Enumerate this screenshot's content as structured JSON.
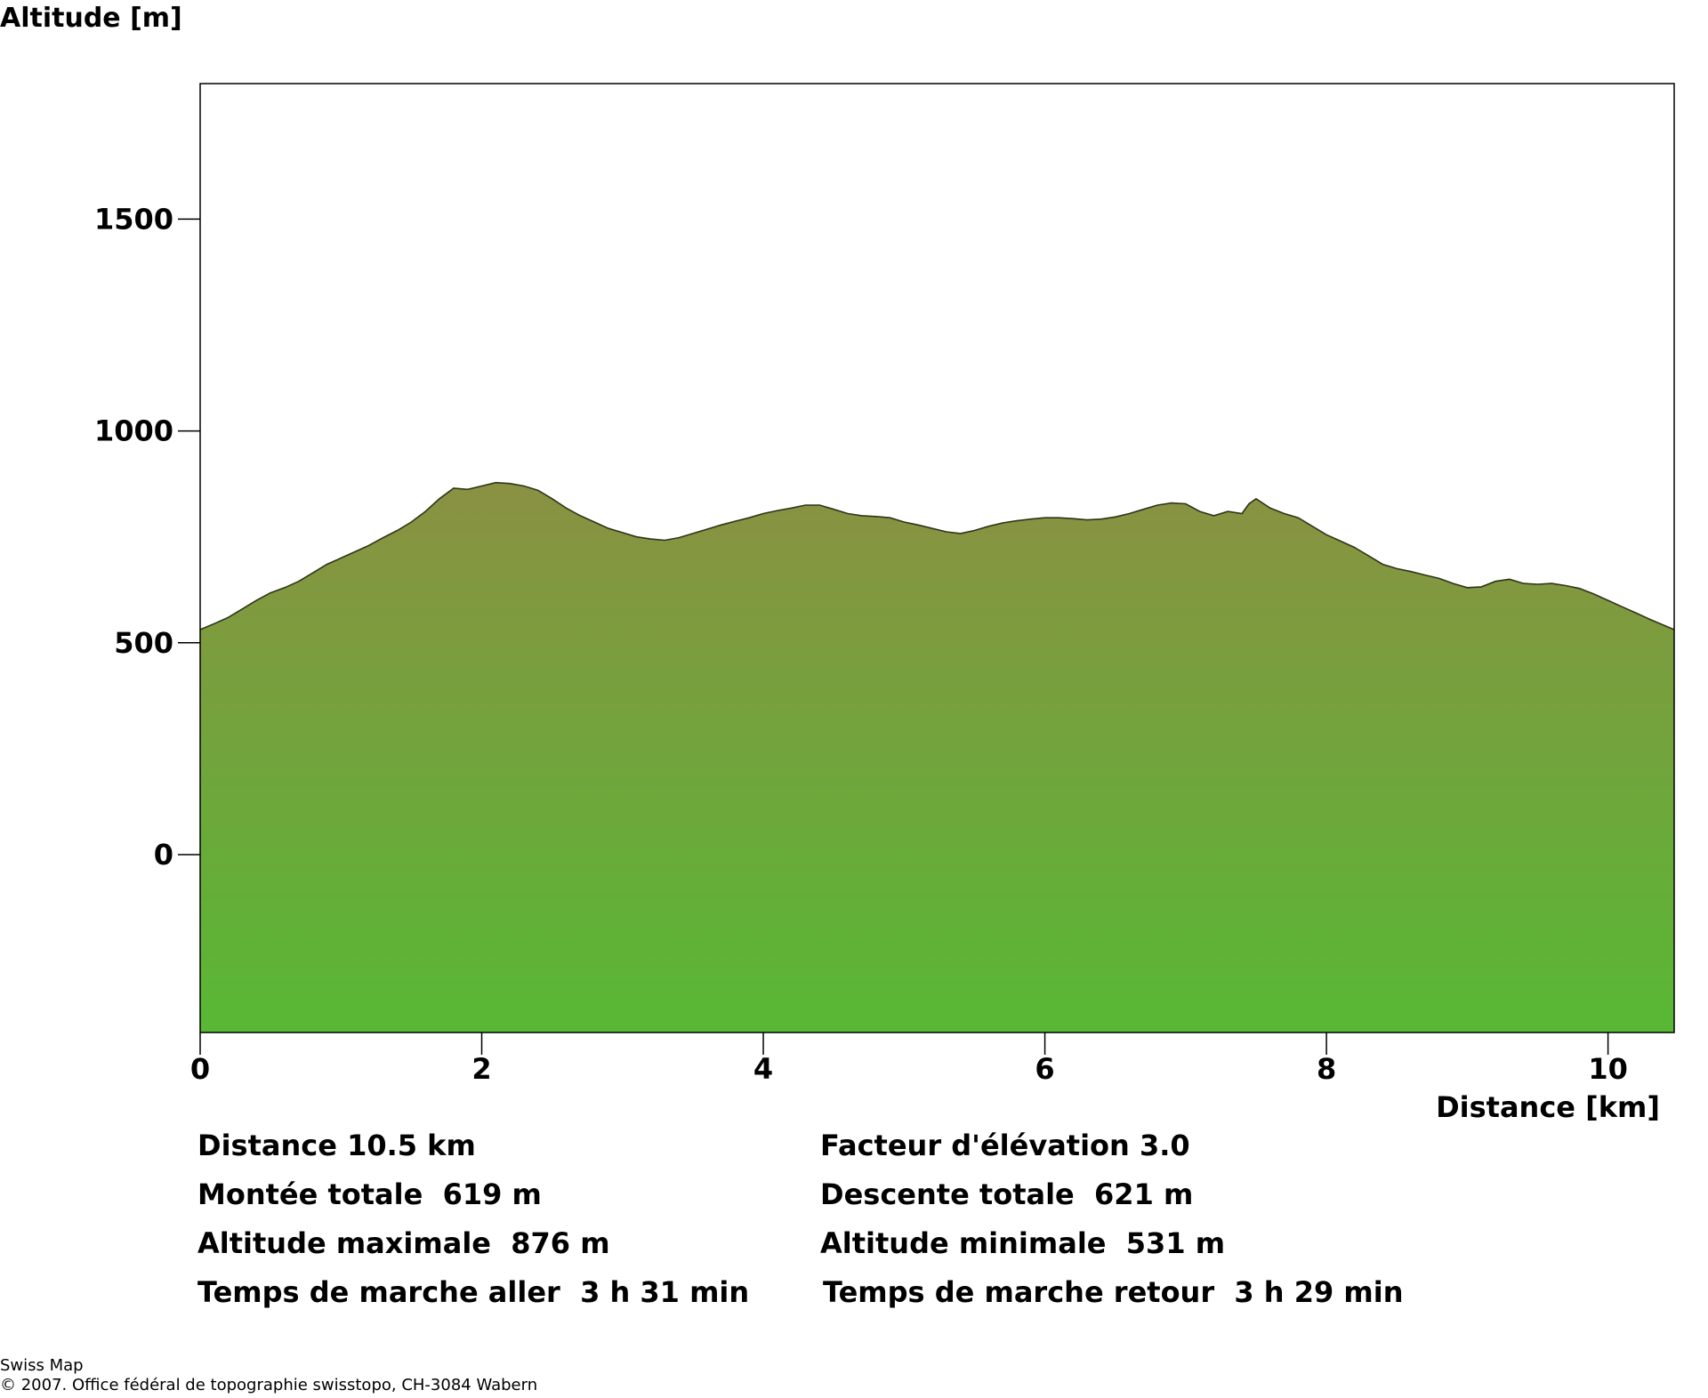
{
  "chart_data": {
    "type": "area",
    "title": "",
    "ylabel": "Altitude [m]",
    "xlabel": "Distance [km]",
    "xlim": [
      0,
      10.47
    ],
    "ylim": [
      -420,
      1820
    ],
    "x_ticks": [
      0,
      2,
      4,
      6,
      8,
      10
    ],
    "y_ticks": [
      0,
      500,
      1000,
      1500
    ],
    "grid": false,
    "fill_gradient": {
      "top": "#8a9142",
      "bottom": "#58b835"
    },
    "outline_color": "#2f3319",
    "series": [
      {
        "x": [
          0.0,
          0.1,
          0.2,
          0.3,
          0.4,
          0.5,
          0.6,
          0.7,
          0.8,
          0.9,
          1.0,
          1.1,
          1.2,
          1.3,
          1.4,
          1.5,
          1.6,
          1.7,
          1.8,
          1.9,
          2.0,
          2.1,
          2.2,
          2.3,
          2.4,
          2.5,
          2.6,
          2.7,
          2.8,
          2.9,
          3.0,
          3.1,
          3.2,
          3.3,
          3.4,
          3.5,
          3.6,
          3.7,
          3.8,
          3.9,
          4.0,
          4.1,
          4.2,
          4.3,
          4.4,
          4.5,
          4.6,
          4.7,
          4.8,
          4.9,
          5.0,
          5.1,
          5.2,
          5.3,
          5.4,
          5.5,
          5.6,
          5.7,
          5.8,
          5.9,
          6.0,
          6.1,
          6.2,
          6.3,
          6.4,
          6.5,
          6.6,
          6.7,
          6.8,
          6.9,
          7.0,
          7.1,
          7.2,
          7.3,
          7.4,
          7.45,
          7.5,
          7.6,
          7.7,
          7.8,
          7.9,
          8.0,
          8.1,
          8.2,
          8.3,
          8.4,
          8.5,
          8.6,
          8.7,
          8.8,
          8.9,
          9.0,
          9.1,
          9.2,
          9.3,
          9.4,
          9.5,
          9.6,
          9.7,
          9.8,
          9.9,
          10.0,
          10.1,
          10.2,
          10.3,
          10.47
        ],
        "y": [
          531,
          545,
          560,
          580,
          600,
          618,
          630,
          645,
          665,
          685,
          700,
          715,
          730,
          748,
          765,
          785,
          810,
          840,
          865,
          862,
          870,
          878,
          876,
          870,
          860,
          840,
          818,
          800,
          785,
          770,
          760,
          750,
          745,
          742,
          748,
          758,
          768,
          778,
          787,
          795,
          805,
          812,
          818,
          825,
          825,
          815,
          805,
          800,
          798,
          795,
          785,
          778,
          770,
          762,
          758,
          765,
          775,
          783,
          788,
          792,
          795,
          795,
          793,
          790,
          792,
          797,
          805,
          815,
          825,
          830,
          828,
          810,
          800,
          810,
          805,
          828,
          840,
          818,
          805,
          795,
          775,
          755,
          740,
          725,
          705,
          685,
          675,
          668,
          660,
          652,
          640,
          630,
          632,
          645,
          650,
          640,
          638,
          640,
          635,
          628,
          615,
          600,
          585,
          570,
          555,
          531
        ]
      }
    ]
  },
  "stats": {
    "distance": "Distance 10.5 km",
    "elevation_factor": "Facteur d'élévation 3.0",
    "ascent": "Montée totale  619 m",
    "descent": "Descente totale  621 m",
    "max_alt": "Altitude maximale  876 m",
    "min_alt": "Altitude minimale  531 m",
    "time_out": "Temps de marche aller  3 h 31 min",
    "time_back": "Temps de marche retour  3 h 29 min"
  },
  "credits": {
    "line1": "Swiss Map",
    "line2": "© 2007. Office fédéral de topographie swisstopo, CH-3084 Wabern"
  }
}
